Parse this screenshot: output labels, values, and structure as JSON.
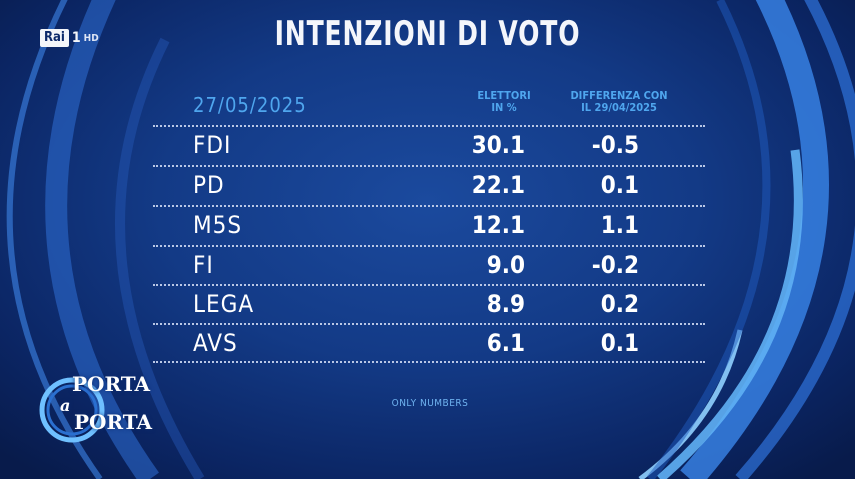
{
  "header": {
    "channel_box": "Rai",
    "channel_number": "1",
    "channel_hd": "HD",
    "title": "INTENZIONI DI VOTO"
  },
  "table": {
    "date": "27/05/2025",
    "col_elettori_line1": "ELETTORI",
    "col_elettori_line2": "IN %",
    "col_diff_line1": "DIFFERENZA CON",
    "col_diff_line2": "IL 29/04/2025",
    "note": "ONLY NUMBERS"
  },
  "chart_data": {
    "type": "table",
    "title": "INTENZIONI DI VOTO",
    "date": "27/05/2025",
    "columns": [
      "ELETTORI IN %",
      "DIFFERENZA CON IL 29/04/2025"
    ],
    "rows": [
      {
        "party": "FDI",
        "value": "30.1",
        "diff": "-0.5"
      },
      {
        "party": "PD",
        "value": "22.1",
        "diff": "0.1"
      },
      {
        "party": "M5S",
        "value": "12.1",
        "diff": "1.1"
      },
      {
        "party": "FI",
        "value": "9.0",
        "diff": "-0.2"
      },
      {
        "party": "LEGA",
        "value": "8.9",
        "diff": "0.2"
      },
      {
        "party": "AVS",
        "value": "6.1",
        "diff": "0.1"
      }
    ]
  },
  "show_logo": {
    "word1": "PORTA",
    "word2": "a",
    "word3": "PORTA"
  },
  "colors": {
    "background": "#133a86",
    "accent": "#4fa6ee",
    "text": "#ffffff"
  }
}
